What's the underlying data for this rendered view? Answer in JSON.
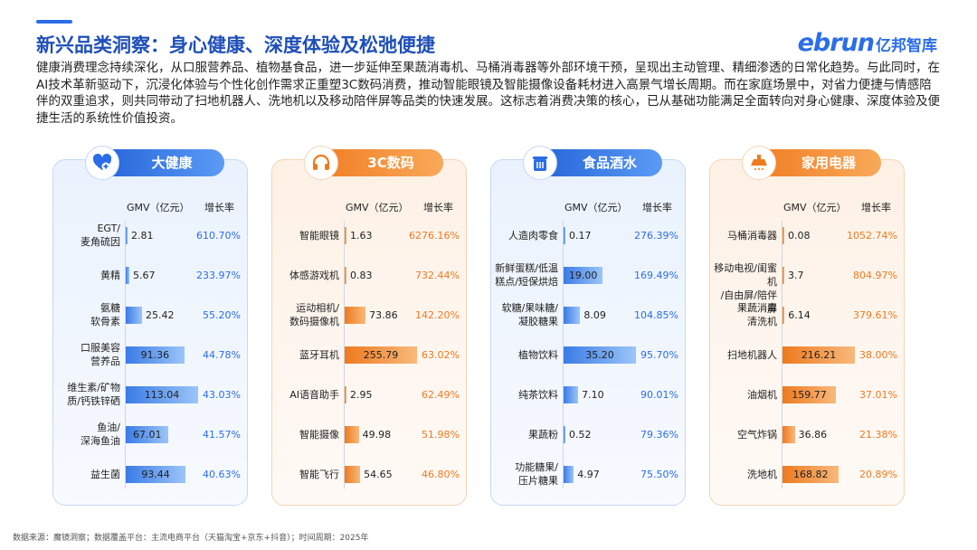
{
  "page": {
    "title": "新兴品类洞察：身心健康、深度体验及松弛便捷",
    "logo_main": "ebrun",
    "logo_sub": "亿邦智库",
    "intro": "健康消费理念持续深化，从口服营养品、植物基食品，进一步延伸至果蔬消毒机、马桶消毒器等外部环境干预，呈现出主动管理、精细渗透的日常化趋势。与此同时，在AI技术革新驱动下，沉浸化体验与个性化创作需求正重塑3C数码消费，推动智能眼镜及智能摄像设备耗材进入高景气增长周期。而在家庭场景中，对省力便捷与情感陪伴的双重追求，则共同带动了扫地机器人、洗地机以及移动陪伴屏等品类的快速发展。这标志着消费决策的核心，已从基础功能满足全面转向对身心健康、深度体验及便捷生活的系统性价值投资。",
    "footer": "数据来源：魔镜洞察；数据覆盖平台：主流电商平台（天猫淘宝+京东+抖音）；时间周期：2025年",
    "accent_color": "#2b6de8"
  },
  "chart_data": [
    {
      "type": "bar",
      "title": "大健康",
      "icon": "heart-plus-icon",
      "theme": "blue",
      "value_header": "GMV（亿元）",
      "growth_header": "增长率",
      "categories": [
        "EGT/\n麦角硫因",
        "黄精",
        "氨糖\n软骨素",
        "口服美容\n营养品",
        "维生素/矿物\n质/钙铁锌硒",
        "鱼油/\n深海鱼油",
        "益生菌"
      ],
      "values": [
        2.81,
        5.67,
        25.42,
        91.36,
        113.04,
        67.01,
        93.44
      ],
      "growth": [
        "610.70%",
        "233.97%",
        "55.20%",
        "44.78%",
        "43.03%",
        "41.57%",
        "40.63%"
      ],
      "xlim": [
        0,
        113.04
      ]
    },
    {
      "type": "bar",
      "title": "3C数码",
      "icon": "headphones-icon",
      "theme": "orange",
      "value_header": "GMV（亿元）",
      "growth_header": "增长率",
      "categories": [
        "智能眼镜",
        "体感游戏机",
        "运动相机/\n数码摄像机",
        "蓝牙耳机",
        "AI语音助手",
        "智能摄像",
        "智能飞行"
      ],
      "values": [
        1.63,
        0.83,
        73.86,
        255.79,
        2.95,
        49.98,
        54.65
      ],
      "growth": [
        "6276.16%",
        "732.44%",
        "142.20%",
        "63.02%",
        "62.49%",
        "51.98%",
        "46.80%"
      ],
      "xlim": [
        0,
        255.79
      ]
    },
    {
      "type": "bar",
      "title": "食品酒水",
      "icon": "food-container-icon",
      "theme": "blue",
      "value_header": "GMV（亿元）",
      "growth_header": "增长率",
      "categories": [
        "人造肉零食",
        "新鲜蛋糕/低温\n糕点/短保烘焙",
        "软糖/果味糖/\n凝胶糖果",
        "植物饮料",
        "纯茶饮料",
        "果蔬粉",
        "功能糖果/\n压片糖果"
      ],
      "values": [
        0.17,
        19.0,
        8.09,
        35.2,
        7.1,
        0.52,
        4.97
      ],
      "value_labels": [
        "0.17",
        "19.00",
        "8.09",
        "35.20",
        "7.10",
        "0.52",
        "4.97"
      ],
      "growth": [
        "276.39%",
        "169.49%",
        "104.85%",
        "95.70%",
        "90.01%",
        "79.36%",
        "75.50%"
      ],
      "xlim": [
        0,
        35.2
      ]
    },
    {
      "type": "bar",
      "title": "家用电器",
      "icon": "range-hood-icon",
      "theme": "orange",
      "value_header": "GMV（亿元）",
      "growth_header": "增长率",
      "categories": [
        "马桶消毒器",
        "移动电视/闺蜜机\n/自由屏/陪伴屏",
        "果蔬消毒\n清洗机",
        "扫地机器人",
        "油烟机",
        "空气炸锅",
        "洗地机"
      ],
      "values": [
        0.08,
        3.7,
        6.14,
        216.21,
        159.77,
        36.86,
        168.82
      ],
      "growth": [
        "1052.74%",
        "804.97%",
        "379.61%",
        "38.00%",
        "37.01%",
        "21.38%",
        "20.89%"
      ],
      "xlim": [
        0,
        216.21
      ]
    }
  ]
}
